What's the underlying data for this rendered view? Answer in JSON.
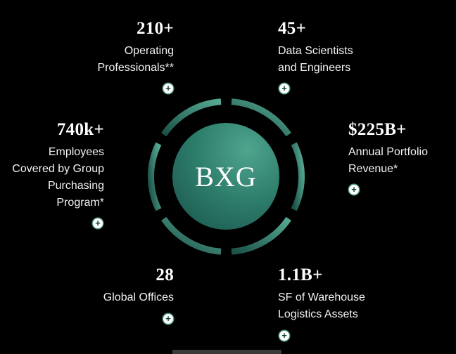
{
  "center": {
    "logo_text": "BXG"
  },
  "stats": {
    "operating": {
      "value": "210+",
      "label_lines": [
        "Operating",
        "Professionals**"
      ]
    },
    "data_sci": {
      "value": "45+",
      "label_lines": [
        "Data Scientists",
        "and Engineers"
      ]
    },
    "employees": {
      "value": "740k+",
      "label_lines": [
        "Employees",
        "Covered by Group",
        "Purchasing",
        "Program*"
      ]
    },
    "revenue": {
      "value": "$225B+",
      "label_lines": [
        "Annual Portfolio",
        "Revenue*"
      ]
    },
    "offices": {
      "value": "28",
      "label_lines": [
        "Global Offices"
      ]
    },
    "warehouse": {
      "value": "1.1B+",
      "label_lines": [
        "SF of Warehouse",
        "Logistics Assets"
      ]
    }
  },
  "icons": {
    "expand": "+"
  },
  "colors": {
    "background": "#000000",
    "accent": "#4e9a86",
    "ring_dark": "#1d5a4f",
    "ring_light": "#4fa58e"
  }
}
